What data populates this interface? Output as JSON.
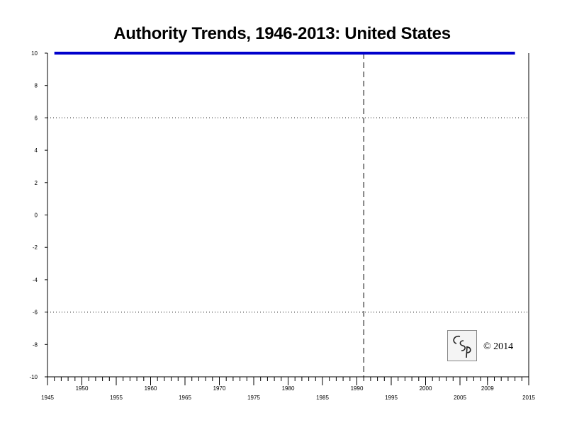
{
  "title": "Authority Trends, 1946-2013: United States",
  "copyright": "© 2014",
  "logo_text": "CSP",
  "chart_data": {
    "type": "line",
    "title": "Authority Trends, 1946-2013: United States",
    "xlabel": "",
    "ylabel": "",
    "xlim": [
      1945,
      2015
    ],
    "ylim": [
      -10,
      10
    ],
    "x_tick_labels_lower": [
      "1945",
      "1955",
      "1965",
      "1975",
      "1985",
      "1995",
      "2005",
      "2015"
    ],
    "x_tick_labels_upper": [
      "1950",
      "1960",
      "1970",
      "1980",
      "1990",
      "2000",
      "2009"
    ],
    "y_ticks": [
      "10",
      "8",
      "6",
      "4",
      "2",
      "0",
      "-2",
      "-4",
      "-6",
      "-8",
      "-10"
    ],
    "reference_lines": [
      6,
      -6
    ],
    "vertical_marker": 1991,
    "series": [
      {
        "x": [
          1946,
          2013
        ],
        "y": [
          10,
          10
        ],
        "color": "#0000cc"
      }
    ]
  }
}
